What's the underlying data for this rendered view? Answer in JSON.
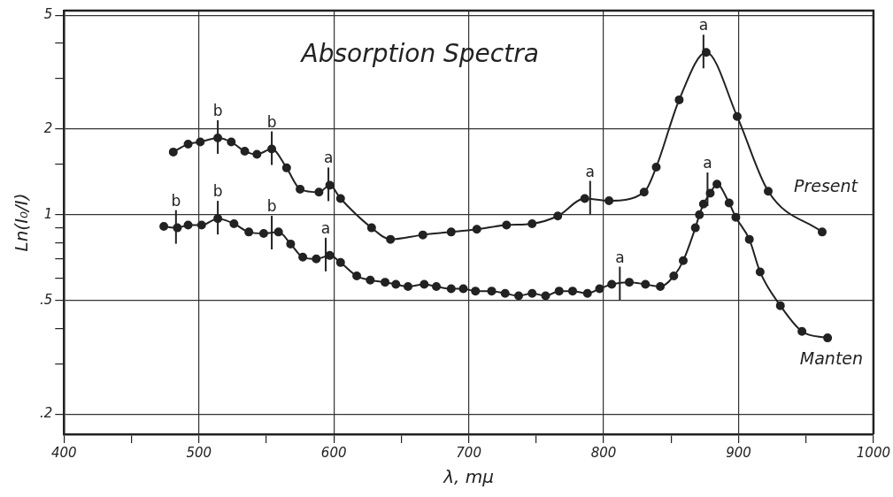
{
  "chart_data": {
    "type": "line",
    "title": "Absorption Spectra",
    "xlabel": "λ, mμ",
    "ylabel": "Ln(I₀/I)",
    "log": "y",
    "grid": true,
    "legend": false,
    "marker": "circle",
    "line_style": "solid",
    "xlim": [
      400,
      1000
    ],
    "ylim": [
      0.17,
      5.2
    ],
    "xticks": [
      400,
      {
        "value": 450,
        "label": null
      },
      500,
      {
        "value": 550,
        "label": null
      },
      600,
      {
        "value": 650,
        "label": null
      },
      700,
      {
        "value": 750,
        "label": null
      },
      800,
      {
        "value": 850,
        "label": null
      },
      900,
      {
        "value": 950,
        "label": null
      },
      1000
    ],
    "yticks": [
      {
        "value": 0.2,
        "label": ".2"
      },
      {
        "value": 0.3,
        "label": null
      },
      {
        "value": 0.4,
        "label": null
      },
      {
        "value": 0.5,
        "label": ".5"
      },
      {
        "value": 0.6,
        "label": null
      },
      {
        "value": 0.7,
        "label": null
      },
      {
        "value": 0.8,
        "label": null
      },
      {
        "value": 0.9,
        "label": null
      },
      1,
      {
        "value": 1.5,
        "label": null
      },
      2,
      {
        "value": 3,
        "label": null
      },
      {
        "value": 4,
        "label": null
      },
      5
    ],
    "series": [
      {
        "name": "Present",
        "color": "#222222",
        "x": [
          481,
          492,
          501,
          514,
          524,
          534,
          543,
          554,
          565,
          575,
          589,
          597,
          605,
          628,
          642,
          666,
          687,
          706,
          728,
          747,
          766,
          786,
          804,
          830,
          839,
          856,
          876,
          899,
          922,
          962
        ],
        "values": [
          1.66,
          1.77,
          1.8,
          1.86,
          1.8,
          1.67,
          1.63,
          1.7,
          1.46,
          1.23,
          1.2,
          1.27,
          1.14,
          0.9,
          0.82,
          0.85,
          0.87,
          0.89,
          0.92,
          0.93,
          0.99,
          1.14,
          1.12,
          1.2,
          1.47,
          2.53,
          3.71,
          2.21,
          1.21,
          0.87
        ]
      },
      {
        "name": "Manten",
        "color": "#222222",
        "x": [
          474,
          484,
          492,
          502,
          514,
          526,
          537,
          548,
          559,
          568,
          577,
          587,
          597,
          605,
          617,
          627,
          638,
          646,
          655,
          667,
          676,
          687,
          696,
          705,
          717,
          727,
          737,
          747,
          757,
          767,
          777,
          788,
          797,
          806,
          819,
          831,
          842,
          852,
          859,
          868,
          871,
          874,
          879,
          884,
          893,
          898,
          908,
          916,
          931,
          947,
          966
        ],
        "values": [
          0.91,
          0.9,
          0.92,
          0.92,
          0.97,
          0.93,
          0.87,
          0.86,
          0.87,
          0.79,
          0.71,
          0.7,
          0.72,
          0.68,
          0.61,
          0.59,
          0.58,
          0.57,
          0.56,
          0.57,
          0.56,
          0.55,
          0.55,
          0.54,
          0.54,
          0.53,
          0.52,
          0.53,
          0.52,
          0.54,
          0.54,
          0.53,
          0.55,
          0.57,
          0.58,
          0.57,
          0.56,
          0.61,
          0.69,
          0.9,
          1.0,
          1.09,
          1.19,
          1.28,
          1.1,
          0.98,
          0.82,
          0.63,
          0.48,
          0.39,
          0.37
        ]
      }
    ],
    "annotations": [
      {
        "text": "b",
        "x": 514,
        "y": 1.86
      },
      {
        "text": "b",
        "x": 554,
        "y": 1.7
      },
      {
        "text": "a",
        "x": 596,
        "y": 1.27
      },
      {
        "text": "a",
        "x": 790,
        "y": 1.14
      },
      {
        "text": "a",
        "x": 874,
        "y": 3.71
      },
      {
        "text": "b",
        "x": 483,
        "y": 0.9
      },
      {
        "text": "b",
        "x": 514,
        "y": 0.97
      },
      {
        "text": "b",
        "x": 554,
        "y": 0.86
      },
      {
        "text": "a",
        "x": 594,
        "y": 0.72
      },
      {
        "text": "a",
        "x": 812,
        "y": 0.57
      },
      {
        "text": "a",
        "x": 877,
        "y": 1.22
      }
    ]
  }
}
